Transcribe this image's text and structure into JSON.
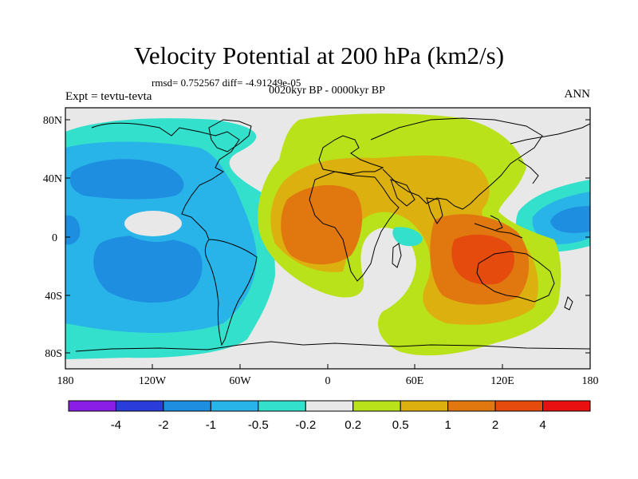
{
  "header": {
    "title": "Velocity Potential at 200 hPa (km2/s)",
    "stats": "rmsd= 0.752567  diff= -4.91249e-05",
    "subtitle": "0020kyr BP - 0000kyr BP",
    "experiment": "Expt = tevtu-tevta",
    "season": "ANN"
  },
  "axes": {
    "lat_labels": [
      "80N",
      "40N",
      "0",
      "40S",
      "80S"
    ],
    "lon_labels": [
      "180",
      "120W",
      "60W",
      "0",
      "60E",
      "120E",
      "180"
    ]
  },
  "colorbar": {
    "labels": [
      "-4",
      "-2",
      "-1",
      "-0.5",
      "-0.2",
      "0.2",
      "0.5",
      "1",
      "2",
      "4"
    ],
    "colors": [
      "#8a1ee6",
      "#2a3cd9",
      "#1e8ee0",
      "#28b4e8",
      "#33e0cc",
      "#e8e8e8",
      "#b9e21a",
      "#dcb10f",
      "#e0780f",
      "#e54b0d",
      "#e81010"
    ]
  }
}
